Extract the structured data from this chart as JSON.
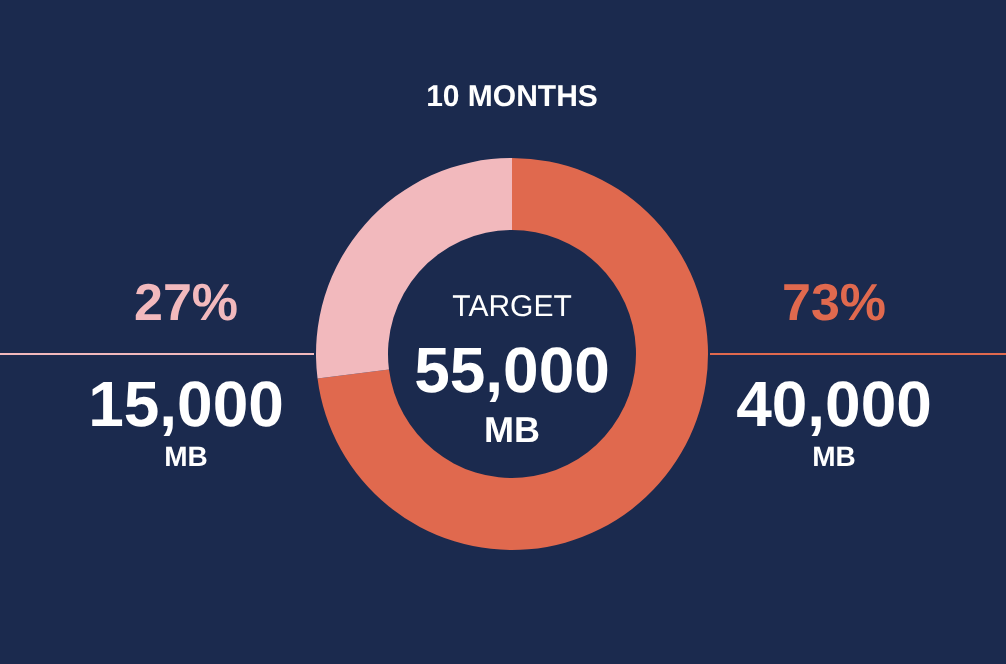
{
  "chart_data": {
    "type": "donut",
    "title": "10 MONTHS",
    "categories": [
      null,
      null
    ],
    "values": [
      73,
      27
    ],
    "colors": [
      "#e0694e",
      "#f2b9bd"
    ],
    "value_labels": [
      "73%",
      "27%"
    ],
    "annotations": [
      "TARGET",
      "55,000",
      "MB",
      "40,000",
      "MB",
      "15,000",
      "MB"
    ]
  }
}
